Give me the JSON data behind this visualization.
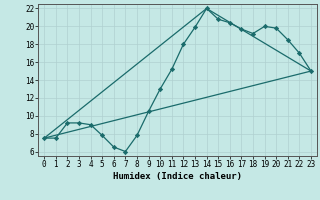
{
  "xlabel": "Humidex (Indice chaleur)",
  "xlim": [
    -0.5,
    23.5
  ],
  "ylim": [
    5.5,
    22.5
  ],
  "xticks": [
    0,
    1,
    2,
    3,
    4,
    5,
    6,
    7,
    8,
    9,
    10,
    11,
    12,
    13,
    14,
    15,
    16,
    17,
    18,
    19,
    20,
    21,
    22,
    23
  ],
  "yticks": [
    6,
    8,
    10,
    12,
    14,
    16,
    18,
    20,
    22
  ],
  "bg_color": "#c5e8e5",
  "line_color": "#1a6b6b",
  "line1_x": [
    0,
    1,
    2,
    3,
    4,
    5,
    6,
    7,
    8,
    9,
    10,
    11,
    12,
    13,
    14,
    15,
    16,
    17,
    18,
    19,
    20,
    21,
    22,
    23
  ],
  "line1_y": [
    7.5,
    7.5,
    9.2,
    9.2,
    9.0,
    7.8,
    6.5,
    6.0,
    7.8,
    10.5,
    13.0,
    15.2,
    18.0,
    19.9,
    22.0,
    20.8,
    20.4,
    19.7,
    19.2,
    20.0,
    19.8,
    18.5,
    17.0,
    15.0
  ],
  "line2_x": [
    0,
    23
  ],
  "line2_y": [
    7.5,
    15.0
  ],
  "line3_x": [
    0,
    14,
    23
  ],
  "line3_y": [
    7.5,
    22.0,
    15.0
  ],
  "xlabel_fontsize": 6.5,
  "tick_fontsize": 5.5
}
